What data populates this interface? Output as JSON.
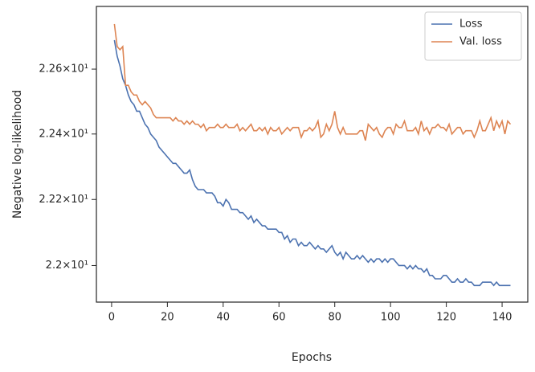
{
  "chart_data": {
    "type": "line",
    "xlabel": "Epochs",
    "ylabel": "Negative log-likelihood",
    "yscale": "log",
    "grid": false,
    "legend": "upper right",
    "xlim": [
      -5.45,
      149.2
    ],
    "ylim": [
      21.89,
      22.795
    ],
    "xticks": [
      0,
      20,
      40,
      60,
      80,
      100,
      120,
      140
    ],
    "yticks": [
      {
        "value": 22.0,
        "label": "2.2×10¹"
      },
      {
        "value": 22.2,
        "label": "2.22×10¹"
      },
      {
        "value": 22.4,
        "label": "2.24×10¹"
      },
      {
        "value": 22.6,
        "label": "2.26×10¹"
      }
    ],
    "x": [
      1,
      2,
      3,
      4,
      5,
      6,
      7,
      8,
      9,
      10,
      11,
      12,
      13,
      14,
      15,
      16,
      17,
      18,
      19,
      20,
      21,
      22,
      23,
      24,
      25,
      26,
      27,
      28,
      29,
      30,
      31,
      32,
      33,
      34,
      35,
      36,
      37,
      38,
      39,
      40,
      41,
      42,
      43,
      44,
      45,
      46,
      47,
      48,
      49,
      50,
      51,
      52,
      53,
      54,
      55,
      56,
      57,
      58,
      59,
      60,
      61,
      62,
      63,
      64,
      65,
      66,
      67,
      68,
      69,
      70,
      71,
      72,
      73,
      74,
      75,
      76,
      77,
      78,
      79,
      80,
      81,
      82,
      83,
      84,
      85,
      86,
      87,
      88,
      89,
      90,
      91,
      92,
      93,
      94,
      95,
      96,
      97,
      98,
      99,
      100,
      101,
      102,
      103,
      104,
      105,
      106,
      107,
      108,
      109,
      110,
      111,
      112,
      113,
      114,
      115,
      116,
      117,
      118,
      119,
      120,
      121,
      122,
      123,
      124,
      125,
      126,
      127,
      128,
      129,
      130,
      131,
      132,
      133,
      134,
      135,
      136,
      137,
      138,
      139,
      140,
      141,
      142,
      143
    ],
    "series": [
      {
        "name": "Loss",
        "color": "#4c72b0",
        "values": [
          22.69,
          22.64,
          22.61,
          22.57,
          22.55,
          22.52,
          22.5,
          22.49,
          22.47,
          22.47,
          22.45,
          22.43,
          22.42,
          22.4,
          22.39,
          22.38,
          22.36,
          22.35,
          22.34,
          22.33,
          22.32,
          22.31,
          22.31,
          22.3,
          22.29,
          22.28,
          22.28,
          22.29,
          22.26,
          22.24,
          22.23,
          22.23,
          22.23,
          22.22,
          22.22,
          22.22,
          22.21,
          22.19,
          22.19,
          22.18,
          22.2,
          22.19,
          22.17,
          22.17,
          22.17,
          22.16,
          22.16,
          22.15,
          22.14,
          22.15,
          22.13,
          22.14,
          22.13,
          22.12,
          22.12,
          22.11,
          22.11,
          22.11,
          22.11,
          22.1,
          22.1,
          22.08,
          22.09,
          22.07,
          22.08,
          22.08,
          22.06,
          22.07,
          22.06,
          22.06,
          22.07,
          22.06,
          22.05,
          22.06,
          22.05,
          22.05,
          22.04,
          22.05,
          22.06,
          22.04,
          22.03,
          22.04,
          22.02,
          22.04,
          22.03,
          22.02,
          22.02,
          22.03,
          22.02,
          22.03,
          22.02,
          22.01,
          22.02,
          22.01,
          22.02,
          22.02,
          22.01,
          22.02,
          22.01,
          22.02,
          22.02,
          22.01,
          22.0,
          22.0,
          22.0,
          21.99,
          22.0,
          21.99,
          22.0,
          21.99,
          21.99,
          21.98,
          21.99,
          21.97,
          21.97,
          21.96,
          21.96,
          21.96,
          21.97,
          21.97,
          21.96,
          21.95,
          21.95,
          21.96,
          21.95,
          21.95,
          21.96,
          21.95,
          21.95,
          21.94,
          21.94,
          21.94,
          21.95,
          21.95,
          21.95,
          21.95,
          21.94,
          21.95,
          21.94,
          21.94,
          21.94,
          21.94,
          21.94
        ]
      },
      {
        "name": "Val. loss",
        "color": "#dd8452",
        "values": [
          22.74,
          22.67,
          22.66,
          22.67,
          22.55,
          22.55,
          22.53,
          22.52,
          22.52,
          22.5,
          22.49,
          22.5,
          22.49,
          22.48,
          22.46,
          22.45,
          22.45,
          22.45,
          22.45,
          22.45,
          22.45,
          22.44,
          22.45,
          22.44,
          22.44,
          22.43,
          22.44,
          22.43,
          22.44,
          22.43,
          22.43,
          22.42,
          22.43,
          22.41,
          22.42,
          22.42,
          22.42,
          22.43,
          22.42,
          22.42,
          22.43,
          22.42,
          22.42,
          22.42,
          22.43,
          22.41,
          22.42,
          22.41,
          22.42,
          22.43,
          22.41,
          22.41,
          22.42,
          22.41,
          22.42,
          22.4,
          22.42,
          22.41,
          22.41,
          22.42,
          22.4,
          22.41,
          22.42,
          22.41,
          22.42,
          22.42,
          22.42,
          22.39,
          22.41,
          22.41,
          22.42,
          22.41,
          22.42,
          22.44,
          22.39,
          22.4,
          22.43,
          22.41,
          22.43,
          22.47,
          22.42,
          22.4,
          22.42,
          22.4,
          22.4,
          22.4,
          22.4,
          22.4,
          22.41,
          22.41,
          22.38,
          22.43,
          22.42,
          22.41,
          22.42,
          22.4,
          22.39,
          22.41,
          22.42,
          22.42,
          22.4,
          22.43,
          22.42,
          22.42,
          22.44,
          22.41,
          22.41,
          22.41,
          22.42,
          22.4,
          22.44,
          22.41,
          22.42,
          22.4,
          22.42,
          22.42,
          22.43,
          22.42,
          22.42,
          22.41,
          22.43,
          22.4,
          22.41,
          22.42,
          22.42,
          22.4,
          22.41,
          22.41,
          22.41,
          22.39,
          22.41,
          22.44,
          22.41,
          22.41,
          22.43,
          22.45,
          22.41,
          22.44,
          22.42,
          22.44,
          22.4,
          22.44,
          22.43
        ]
      }
    ]
  }
}
